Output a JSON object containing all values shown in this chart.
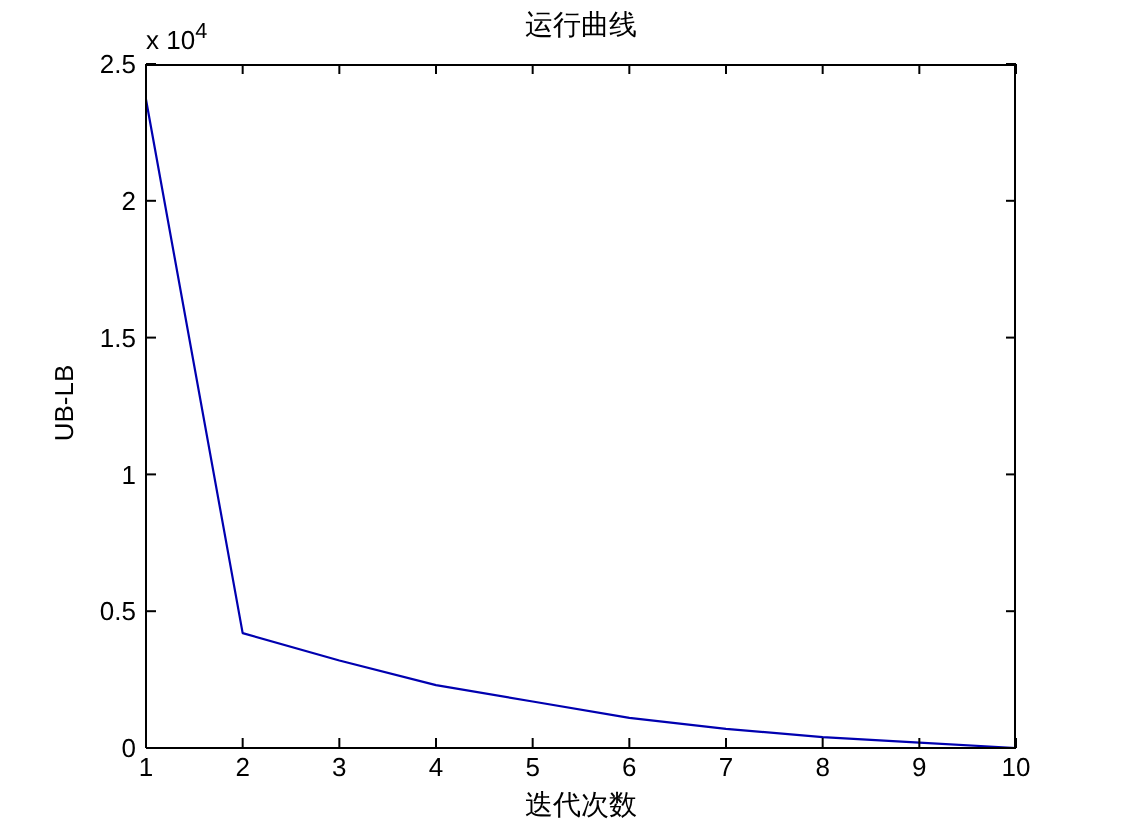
{
  "chart_data": {
    "type": "line",
    "title": "运行曲线",
    "xlabel": "迭代次数",
    "ylabel": "UB-LB",
    "annotations": [
      "x 10$^{4}$"
    ],
    "x": [
      1,
      2,
      3,
      4,
      5,
      6,
      7,
      8,
      9,
      10
    ],
    "series": [
      {
        "color": "#0000b0",
        "values": [
          2.37,
          0.42,
          0.32,
          0.23,
          0.17,
          0.11,
          0.07,
          0.04,
          0.02,
          0
        ]
      }
    ],
    "xlim": [
      1,
      10
    ],
    "xticks": [
      1,
      2,
      3,
      4,
      5,
      6,
      7,
      8,
      9,
      10
    ],
    "ylim": [
      0,
      2.5
    ],
    "yticks": [
      0,
      0.5,
      1,
      1.5,
      2,
      2.5
    ],
    "line_style": "solid"
  }
}
